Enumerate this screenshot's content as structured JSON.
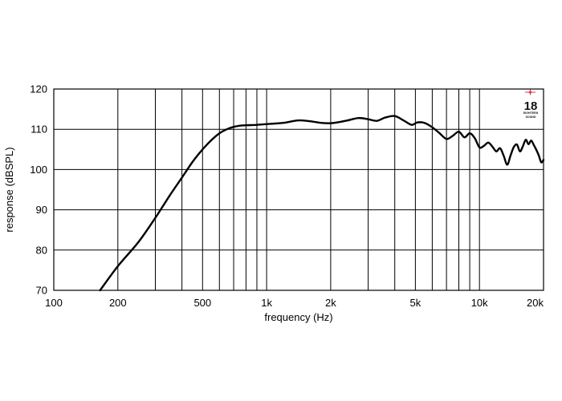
{
  "chart_data": {
    "type": "line",
    "xscale": "log",
    "xlabel": "frequency (Hz)",
    "ylabel": "response (dBSPL)",
    "xlim": [
      100,
      20000
    ],
    "ylim": [
      70,
      120
    ],
    "grid": true,
    "x_ticks": [
      {
        "value": 100,
        "label": "100"
      },
      {
        "value": 200,
        "label": "200"
      },
      {
        "value": 500,
        "label": "500"
      },
      {
        "value": 1000,
        "label": "1k"
      },
      {
        "value": 2000,
        "label": "2k"
      },
      {
        "value": 5000,
        "label": "5k"
      },
      {
        "value": 10000,
        "label": "10k"
      },
      {
        "value": 20000,
        "label": "20k"
      }
    ],
    "x_gridlines": [
      200,
      300,
      400,
      500,
      600,
      700,
      800,
      900,
      1000,
      2000,
      3000,
      4000,
      5000,
      6000,
      7000,
      8000,
      9000,
      10000
    ],
    "y_ticks": [
      70,
      80,
      90,
      100,
      110,
      120
    ],
    "series": [
      {
        "color": "#000000",
        "x": [
          165,
          200,
          250,
          300,
          350,
          400,
          450,
          500,
          550,
          600,
          650,
          700,
          750,
          800,
          900,
          1000,
          1200,
          1400,
          1600,
          1800,
          2000,
          2200,
          2400,
          2700,
          3000,
          3300,
          3600,
          4000,
          4400,
          4800,
          5100,
          5500,
          6000,
          6500,
          7000,
          7500,
          8000,
          8500,
          9000,
          9500,
          10000,
          10500,
          11000,
          11500,
          12000,
          12500,
          13000,
          13500,
          14000,
          14500,
          15000,
          15500,
          16000,
          16500,
          17000,
          17500,
          18000,
          18500,
          19000,
          19500,
          20000
        ],
        "y": [
          70,
          76,
          82,
          88,
          93.5,
          98,
          102,
          105,
          107.3,
          109,
          110,
          110.6,
          110.9,
          111,
          111.1,
          111.3,
          111.6,
          112.2,
          112,
          111.6,
          111.5,
          111.8,
          112.2,
          112.8,
          112.5,
          112.1,
          112.9,
          113.3,
          112.2,
          111.1,
          111.7,
          111.6,
          110.5,
          109,
          107.6,
          108.4,
          109.4,
          108,
          109,
          107.8,
          105.5,
          105.9,
          106.7,
          105.7,
          104.5,
          105.3,
          103.4,
          101.2,
          103.5,
          105.6,
          106.2,
          104.5,
          105.8,
          107.4,
          106.3,
          107.2,
          106.1,
          104.9,
          103.5,
          101.8,
          102.4
        ]
      }
    ]
  },
  "logo": {
    "number": "18",
    "line1": "EIGHTEEN",
    "line2": "SOUND"
  }
}
